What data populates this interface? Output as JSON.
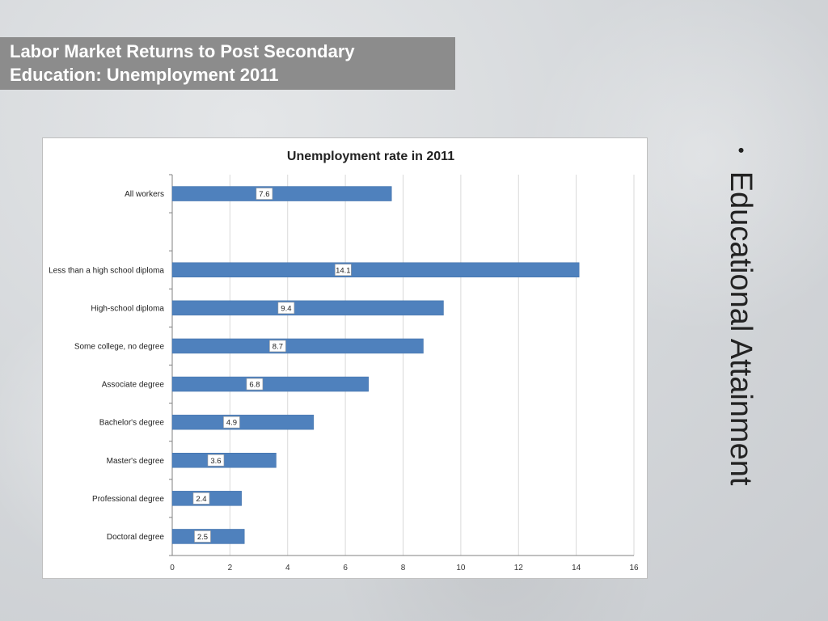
{
  "slide": {
    "title_lines": [
      "Labor Market Returns to Post Secondary",
      "Education:  Unemployment 2011"
    ],
    "side_text": "Educational Attainment",
    "bullet": "•"
  },
  "colors": {
    "bar": "#4f81bd",
    "bar_border": "#3f6fa8",
    "grid": "#d9d9d9",
    "title_bg": "#8c8c8c"
  },
  "chart_data": {
    "type": "bar",
    "orientation": "horizontal",
    "title": "Unemployment rate in 2011",
    "xlabel": "",
    "ylabel": "",
    "xlim": [
      0,
      16
    ],
    "x_ticks": [
      0,
      2,
      4,
      6,
      8,
      10,
      12,
      14,
      16
    ],
    "grid": true,
    "legend": "none",
    "categories": [
      "All workers",
      "",
      "Less than a high school diploma",
      "High-school diploma",
      "Some college, no degree",
      "Associate degree",
      "Bachelor's degree",
      "Master's degree",
      "Professional degree",
      "Doctoral degree"
    ],
    "values": [
      7.6,
      null,
      14.1,
      9.4,
      8.7,
      6.8,
      4.9,
      3.6,
      2.4,
      2.5
    ]
  }
}
